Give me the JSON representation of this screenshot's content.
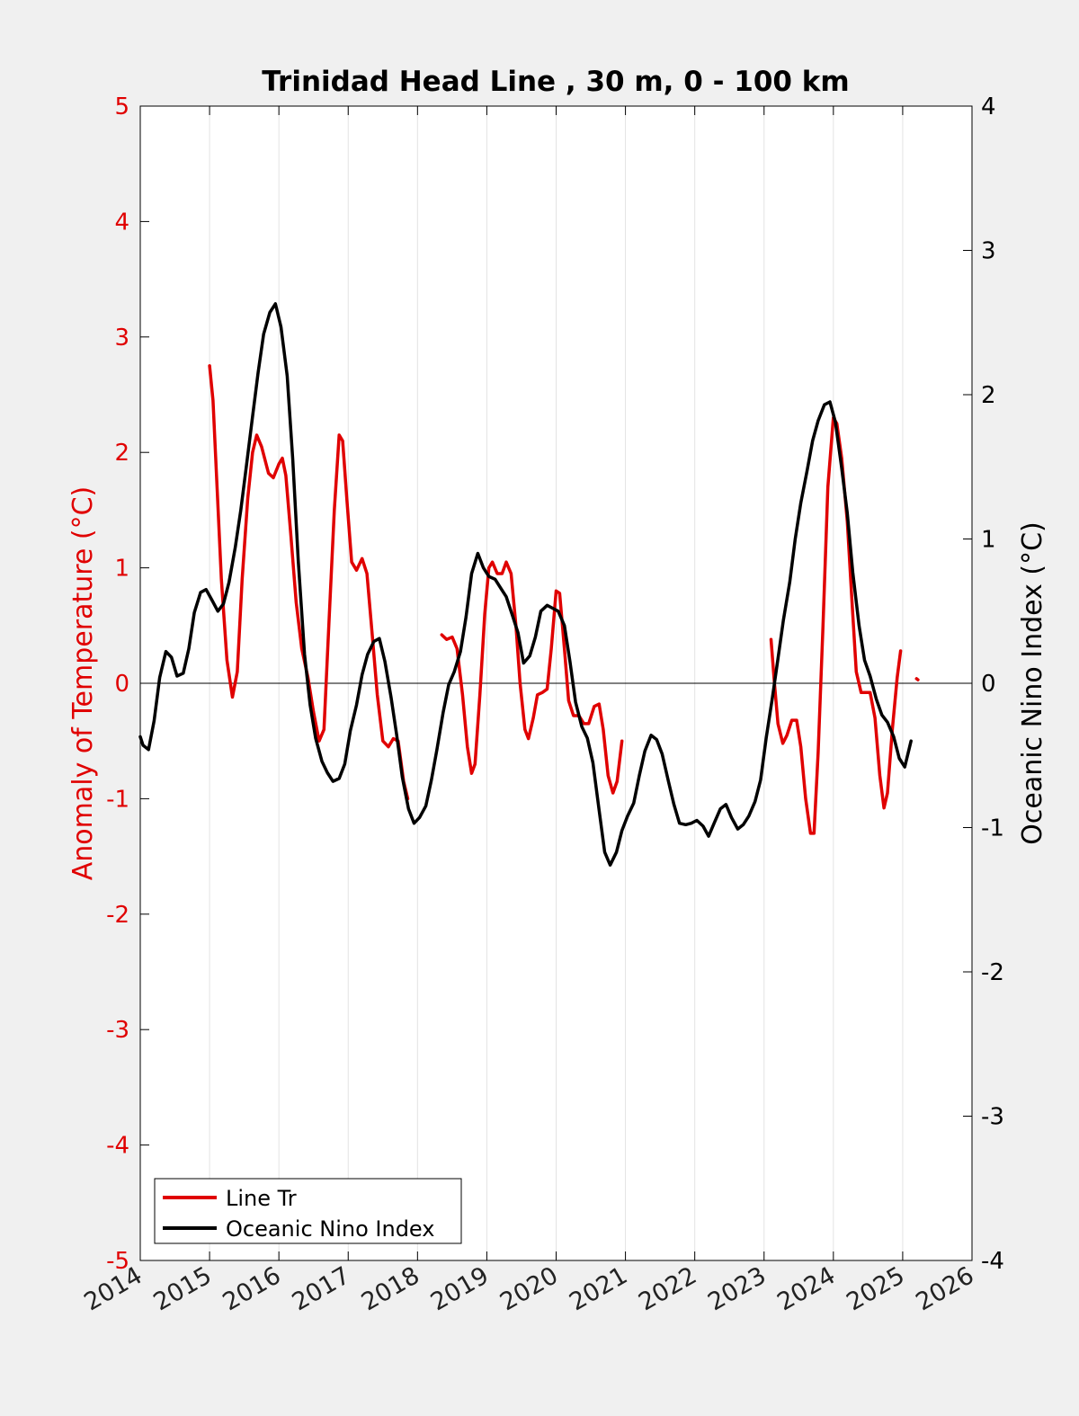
{
  "chart_data": {
    "type": "line",
    "title": "Trinidad Head Line , 30 m, 0 - 100 km",
    "xlabel": "",
    "x_unit": "year",
    "xlim": [
      2014,
      2026
    ],
    "x_ticks": [
      "2014",
      "2015",
      "2016",
      "2017",
      "2018",
      "2019",
      "2020",
      "2021",
      "2022",
      "2023",
      "2024",
      "2025",
      "2026"
    ],
    "y_left": {
      "label": "Anomaly of Temperature (°C)",
      "lim": [
        -5,
        5
      ],
      "ticks": [
        "5",
        "4",
        "3",
        "2",
        "1",
        "0",
        "-1",
        "-2",
        "-3",
        "-4",
        "-5"
      ],
      "color": "#e00000"
    },
    "y_right": {
      "label": "Oceanic Nino Index (°C)",
      "lim": [
        -4,
        4
      ],
      "ticks": [
        "4",
        "3",
        "2",
        "1",
        "0",
        "-1",
        "-2",
        "-3",
        "-4"
      ],
      "color": "#000000"
    },
    "grid": "vertical lines at x ticks",
    "zero_line": true,
    "legend": {
      "placement": "bottom-left"
    },
    "series": [
      {
        "name": "Line Tr",
        "axis": "left",
        "color": "#e00000",
        "segments": [
          [
            [
              2015.0,
              2.75
            ],
            [
              2015.05,
              2.45
            ],
            [
              2015.1,
              1.8
            ],
            [
              2015.17,
              0.9
            ],
            [
              2015.25,
              0.2
            ],
            [
              2015.33,
              -0.12
            ],
            [
              2015.4,
              0.1
            ],
            [
              2015.47,
              0.9
            ],
            [
              2015.55,
              1.6
            ],
            [
              2015.62,
              2.0
            ],
            [
              2015.68,
              2.15
            ],
            [
              2015.75,
              2.05
            ],
            [
              2015.85,
              1.82
            ],
            [
              2015.92,
              1.78
            ],
            [
              2016.0,
              1.9
            ],
            [
              2016.05,
              1.95
            ],
            [
              2016.1,
              1.8
            ],
            [
              2016.17,
              1.3
            ],
            [
              2016.25,
              0.7
            ],
            [
              2016.33,
              0.3
            ],
            [
              2016.42,
              0.05
            ],
            [
              2016.5,
              -0.25
            ],
            [
              2016.58,
              -0.5
            ],
            [
              2016.65,
              -0.4
            ],
            [
              2016.72,
              0.5
            ],
            [
              2016.8,
              1.5
            ],
            [
              2016.87,
              2.15
            ],
            [
              2016.92,
              2.1
            ],
            [
              2016.98,
              1.6
            ],
            [
              2017.05,
              1.05
            ],
            [
              2017.12,
              0.98
            ],
            [
              2017.2,
              1.08
            ],
            [
              2017.27,
              0.95
            ],
            [
              2017.35,
              0.4
            ],
            [
              2017.42,
              -0.1
            ],
            [
              2017.5,
              -0.5
            ],
            [
              2017.58,
              -0.55
            ],
            [
              2017.65,
              -0.48
            ],
            [
              2017.72,
              -0.5
            ],
            [
              2017.8,
              -0.85
            ],
            [
              2017.86,
              -1.0
            ]
          ],
          [
            [
              2018.35,
              0.42
            ],
            [
              2018.42,
              0.38
            ],
            [
              2018.5,
              0.4
            ],
            [
              2018.57,
              0.3
            ],
            [
              2018.65,
              -0.1
            ],
            [
              2018.72,
              -0.55
            ],
            [
              2018.78,
              -0.78
            ],
            [
              2018.83,
              -0.7
            ],
            [
              2018.9,
              -0.1
            ],
            [
              2018.97,
              0.6
            ],
            [
              2019.03,
              1.0
            ],
            [
              2019.08,
              1.05
            ],
            [
              2019.15,
              0.95
            ],
            [
              2019.22,
              0.95
            ],
            [
              2019.28,
              1.05
            ],
            [
              2019.35,
              0.95
            ],
            [
              2019.42,
              0.5
            ],
            [
              2019.48,
              0.0
            ],
            [
              2019.55,
              -0.4
            ],
            [
              2019.6,
              -0.48
            ],
            [
              2019.67,
              -0.3
            ],
            [
              2019.73,
              -0.1
            ],
            [
              2019.8,
              -0.08
            ],
            [
              2019.87,
              -0.05
            ],
            [
              2019.93,
              0.3
            ],
            [
              2020.0,
              0.8
            ],
            [
              2020.05,
              0.78
            ],
            [
              2020.12,
              0.3
            ],
            [
              2020.18,
              -0.15
            ],
            [
              2020.25,
              -0.28
            ],
            [
              2020.33,
              -0.28
            ],
            [
              2020.4,
              -0.35
            ],
            [
              2020.47,
              -0.35
            ],
            [
              2020.55,
              -0.2
            ],
            [
              2020.62,
              -0.18
            ],
            [
              2020.68,
              -0.4
            ],
            [
              2020.75,
              -0.8
            ],
            [
              2020.82,
              -0.95
            ],
            [
              2020.88,
              -0.85
            ],
            [
              2020.95,
              -0.5
            ]
          ],
          [
            [
              2023.1,
              0.38
            ],
            [
              2023.15,
              0.0
            ],
            [
              2023.2,
              -0.35
            ],
            [
              2023.27,
              -0.52
            ],
            [
              2023.33,
              -0.45
            ],
            [
              2023.4,
              -0.32
            ],
            [
              2023.47,
              -0.32
            ],
            [
              2023.53,
              -0.55
            ],
            [
              2023.6,
              -1.0
            ],
            [
              2023.67,
              -1.3
            ],
            [
              2023.72,
              -1.3
            ],
            [
              2023.78,
              -0.6
            ],
            [
              2023.85,
              0.5
            ],
            [
              2023.92,
              1.7
            ],
            [
              2024.0,
              2.3
            ],
            [
              2024.05,
              2.25
            ],
            [
              2024.12,
              1.95
            ],
            [
              2024.2,
              1.4
            ],
            [
              2024.27,
              0.7
            ],
            [
              2024.33,
              0.1
            ],
            [
              2024.4,
              -0.08
            ],
            [
              2024.47,
              -0.08
            ],
            [
              2024.53,
              -0.08
            ],
            [
              2024.6,
              -0.3
            ],
            [
              2024.67,
              -0.8
            ],
            [
              2024.73,
              -1.08
            ],
            [
              2024.78,
              -0.95
            ],
            [
              2024.85,
              -0.4
            ],
            [
              2024.92,
              0.05
            ],
            [
              2024.97,
              0.28
            ]
          ],
          [
            [
              2025.2,
              0.04
            ],
            [
              2025.22,
              0.03
            ]
          ]
        ]
      },
      {
        "name": "Oceanic Nino Index",
        "axis": "right",
        "color": "#000000",
        "segments": [
          [
            [
              2014.0,
              -0.37
            ],
            [
              2014.04,
              -0.43
            ],
            [
              2014.12,
              -0.46
            ],
            [
              2014.2,
              -0.26
            ],
            [
              2014.28,
              0.04
            ],
            [
              2014.37,
              0.22
            ],
            [
              2014.45,
              0.18
            ],
            [
              2014.53,
              0.05
            ],
            [
              2014.62,
              0.07
            ],
            [
              2014.7,
              0.24
            ],
            [
              2014.78,
              0.49
            ],
            [
              2014.87,
              0.63
            ],
            [
              2014.95,
              0.65
            ],
            [
              2015.03,
              0.58
            ],
            [
              2015.12,
              0.5
            ],
            [
              2015.2,
              0.55
            ],
            [
              2015.28,
              0.7
            ],
            [
              2015.37,
              0.94
            ],
            [
              2015.45,
              1.2
            ],
            [
              2015.53,
              1.5
            ],
            [
              2015.62,
              1.85
            ],
            [
              2015.7,
              2.15
            ],
            [
              2015.78,
              2.42
            ],
            [
              2015.87,
              2.57
            ],
            [
              2015.95,
              2.63
            ],
            [
              2016.03,
              2.47
            ],
            [
              2016.12,
              2.13
            ],
            [
              2016.2,
              1.55
            ],
            [
              2016.28,
              0.85
            ],
            [
              2016.37,
              0.2
            ],
            [
              2016.45,
              -0.15
            ],
            [
              2016.53,
              -0.38
            ],
            [
              2016.62,
              -0.54
            ],
            [
              2016.7,
              -0.62
            ],
            [
              2016.78,
              -0.68
            ],
            [
              2016.87,
              -0.66
            ],
            [
              2016.95,
              -0.56
            ],
            [
              2017.03,
              -0.33
            ],
            [
              2017.12,
              -0.15
            ],
            [
              2017.2,
              0.06
            ],
            [
              2017.28,
              0.2
            ],
            [
              2017.37,
              0.29
            ],
            [
              2017.45,
              0.31
            ],
            [
              2017.53,
              0.15
            ],
            [
              2017.62,
              -0.1
            ],
            [
              2017.7,
              -0.36
            ],
            [
              2017.78,
              -0.65
            ],
            [
              2017.87,
              -0.87
            ],
            [
              2017.95,
              -0.97
            ],
            [
              2018.03,
              -0.93
            ],
            [
              2018.12,
              -0.85
            ],
            [
              2018.2,
              -0.67
            ],
            [
              2018.28,
              -0.46
            ],
            [
              2018.37,
              -0.2
            ],
            [
              2018.45,
              -0.01
            ],
            [
              2018.53,
              0.08
            ],
            [
              2018.62,
              0.22
            ],
            [
              2018.7,
              0.46
            ],
            [
              2018.78,
              0.76
            ],
            [
              2018.87,
              0.9
            ],
            [
              2018.95,
              0.8
            ],
            [
              2019.03,
              0.74
            ],
            [
              2019.12,
              0.72
            ],
            [
              2019.2,
              0.66
            ],
            [
              2019.28,
              0.6
            ],
            [
              2019.37,
              0.47
            ],
            [
              2019.45,
              0.35
            ],
            [
              2019.53,
              0.14
            ],
            [
              2019.62,
              0.19
            ],
            [
              2019.7,
              0.32
            ],
            [
              2019.78,
              0.5
            ],
            [
              2019.87,
              0.54
            ],
            [
              2019.95,
              0.52
            ],
            [
              2020.03,
              0.5
            ],
            [
              2020.12,
              0.4
            ],
            [
              2020.2,
              0.15
            ],
            [
              2020.28,
              -0.13
            ],
            [
              2020.37,
              -0.3
            ],
            [
              2020.45,
              -0.38
            ],
            [
              2020.53,
              -0.55
            ],
            [
              2020.62,
              -0.88
            ],
            [
              2020.7,
              -1.17
            ],
            [
              2020.78,
              -1.26
            ],
            [
              2020.87,
              -1.17
            ],
            [
              2020.95,
              -1.02
            ],
            [
              2021.03,
              -0.92
            ],
            [
              2021.12,
              -0.83
            ],
            [
              2021.2,
              -0.64
            ],
            [
              2021.28,
              -0.47
            ],
            [
              2021.37,
              -0.36
            ],
            [
              2021.45,
              -0.39
            ],
            [
              2021.53,
              -0.49
            ],
            [
              2021.62,
              -0.68
            ],
            [
              2021.7,
              -0.84
            ],
            [
              2021.78,
              -0.97
            ],
            [
              2021.87,
              -0.98
            ],
            [
              2021.95,
              -0.97
            ],
            [
              2022.03,
              -0.95
            ],
            [
              2022.12,
              -0.99
            ],
            [
              2022.2,
              -1.06
            ],
            [
              2022.28,
              -0.97
            ],
            [
              2022.37,
              -0.87
            ],
            [
              2022.45,
              -0.84
            ],
            [
              2022.53,
              -0.93
            ],
            [
              2022.62,
              -1.01
            ],
            [
              2022.7,
              -0.98
            ],
            [
              2022.78,
              -0.92
            ],
            [
              2022.87,
              -0.82
            ],
            [
              2022.95,
              -0.67
            ],
            [
              2023.03,
              -0.38
            ],
            [
              2023.12,
              -0.1
            ],
            [
              2023.2,
              0.17
            ],
            [
              2023.28,
              0.44
            ],
            [
              2023.37,
              0.7
            ],
            [
              2023.45,
              1.0
            ],
            [
              2023.53,
              1.25
            ],
            [
              2023.62,
              1.47
            ],
            [
              2023.7,
              1.68
            ],
            [
              2023.78,
              1.82
            ],
            [
              2023.87,
              1.93
            ],
            [
              2023.95,
              1.95
            ],
            [
              2024.03,
              1.81
            ],
            [
              2024.12,
              1.49
            ],
            [
              2024.2,
              1.18
            ],
            [
              2024.28,
              0.77
            ],
            [
              2024.37,
              0.4
            ],
            [
              2024.45,
              0.16
            ],
            [
              2024.53,
              0.05
            ],
            [
              2024.62,
              -0.11
            ],
            [
              2024.7,
              -0.22
            ],
            [
              2024.78,
              -0.27
            ],
            [
              2024.87,
              -0.37
            ],
            [
              2024.95,
              -0.52
            ],
            [
              2025.03,
              -0.58
            ],
            [
              2025.12,
              -0.4
            ]
          ]
        ]
      }
    ]
  }
}
